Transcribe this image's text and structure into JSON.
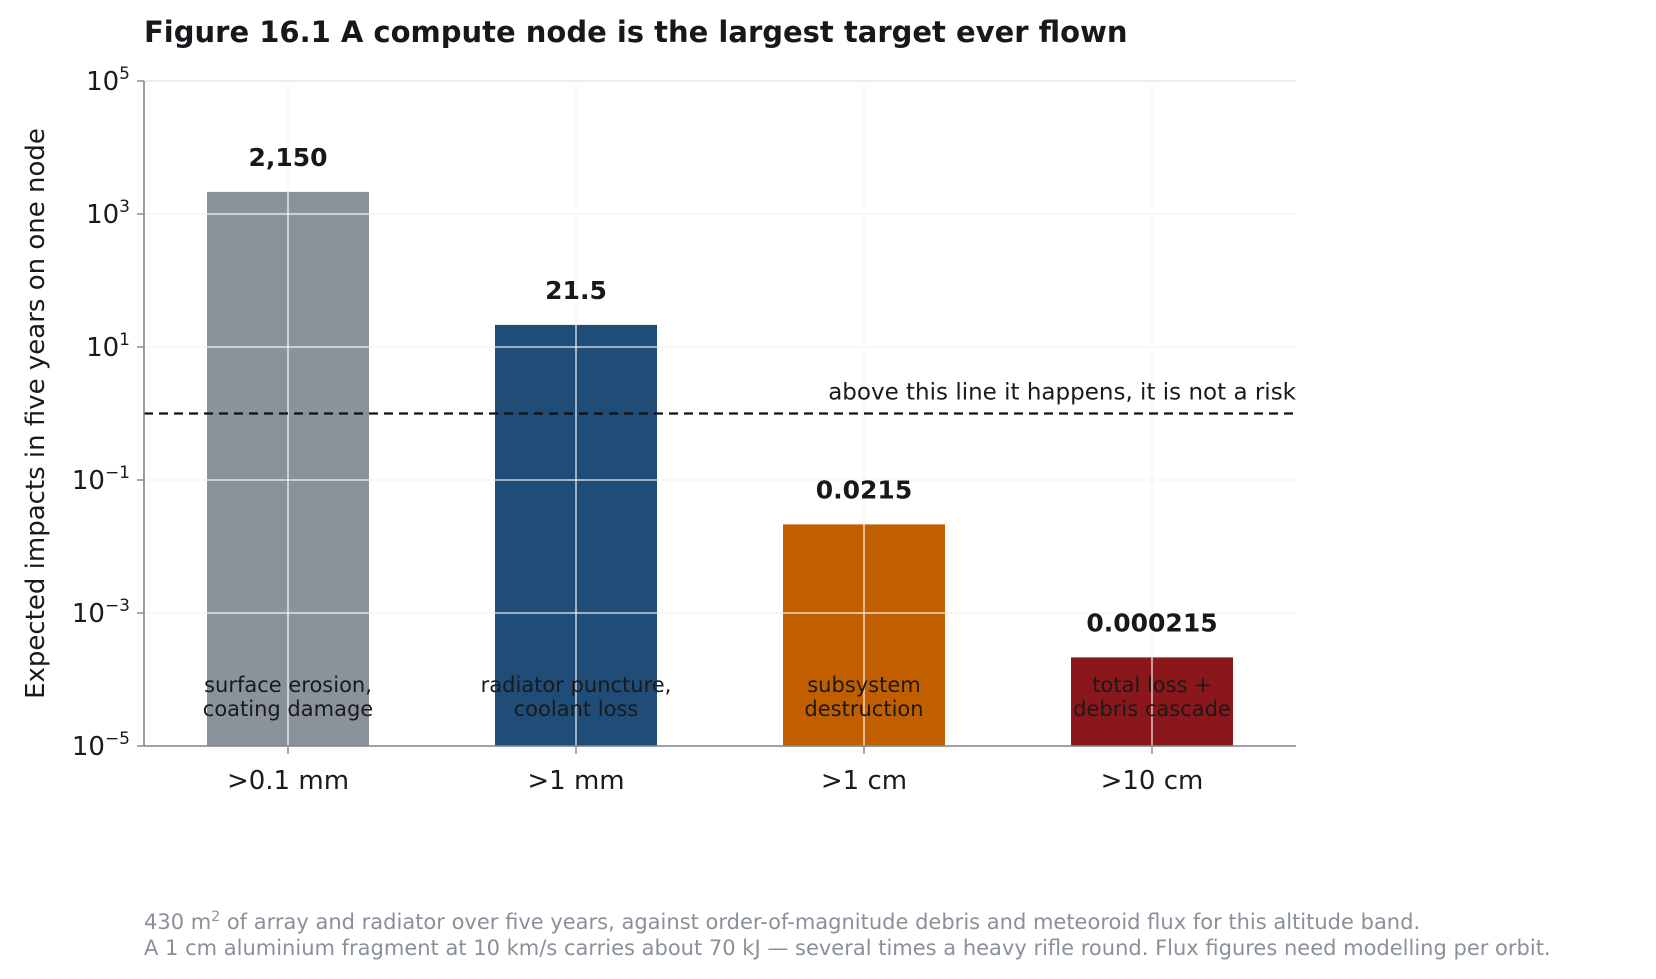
{
  "chart_data": {
    "type": "bar",
    "title": "Figure 16.1  A compute node is the largest target ever flown",
    "ylabel": "Expected impacts in five years on one node",
    "xlabel": "",
    "yscale": "log",
    "ylim": [
      1e-05,
      100000
    ],
    "yticks": [
      {
        "base": "10",
        "exp": "5"
      },
      {
        "base": "10",
        "exp": "3"
      },
      {
        "base": "10",
        "exp": "1"
      },
      {
        "base": "10",
        "exp": "−1"
      },
      {
        "base": "10",
        "exp": "−3"
      },
      {
        "base": "10",
        "exp": "−5"
      }
    ],
    "ytick_values": [
      100000,
      1000,
      10,
      0.1,
      0.001,
      1e-05
    ],
    "grid": true,
    "categories": [
      ">0.1 mm",
      ">1 mm",
      ">1 cm",
      ">10 cm"
    ],
    "values": [
      2150,
      21.5,
      0.0215,
      0.000215
    ],
    "value_labels": [
      "2,150",
      "21.5",
      "0.0215",
      "0.000215"
    ],
    "bar_annotations": [
      [
        "surface erosion,",
        "coating damage"
      ],
      [
        "radiator puncture,",
        "coolant loss"
      ],
      [
        "subsystem",
        "destruction"
      ],
      [
        "total loss +",
        "debris cascade"
      ]
    ],
    "colors": [
      "#8a939c",
      "#204d77",
      "#c15f00",
      "#8a171b"
    ],
    "threshold": {
      "value": 1,
      "label": "above this line it happens, it is not a risk",
      "style": "dashed"
    }
  },
  "caption": {
    "line1_prefix": "430 m",
    "line1_sup": "2",
    "line1_suffix": " of array and radiator over five years, against order-of-magnitude debris and meteoroid flux for this altitude band.",
    "line2": "A 1 cm aluminium fragment at 10 km/s carries about 70 kJ — several times a heavy rifle round. Flux figures need modelling per orbit."
  }
}
